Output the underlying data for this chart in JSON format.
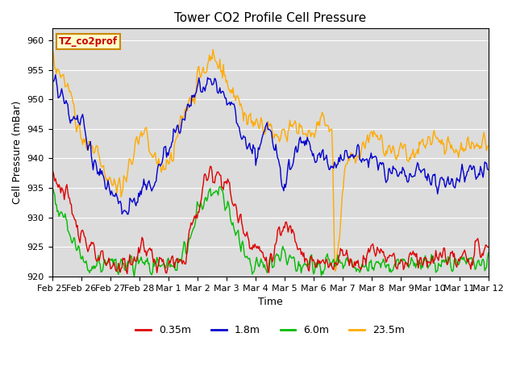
{
  "title": "Tower CO2 Profile Cell Pressure",
  "xlabel": "Time",
  "ylabel": "Cell Pressure (mBar)",
  "ylim": [
    920,
    962
  ],
  "yticks": [
    920,
    925,
    930,
    935,
    940,
    945,
    950,
    955,
    960
  ],
  "bg_color": "#dcdcdc",
  "legend_label": "TZ_co2prof",
  "legend_bg": "#ffffcc",
  "legend_edge": "#cc8800",
  "series_colors": [
    "#dd0000",
    "#0000cc",
    "#00bb00",
    "#ffaa00"
  ],
  "series_labels": [
    "0.35m",
    "1.8m",
    "6.0m",
    "23.5m"
  ],
  "xtick_labels": [
    "Feb 25",
    "Feb 26",
    "Feb 27",
    "Feb 28",
    "Mar 1",
    "Mar 2",
    "Mar 3",
    "Mar 4",
    "Mar 5",
    "Mar 6",
    "Mar 7",
    "Mar 8",
    "Mar 9",
    "Mar 10",
    "Mar 11",
    "Mar 12"
  ],
  "n_points": 500,
  "title_fontsize": 11,
  "axis_label_fontsize": 9,
  "tick_fontsize": 8
}
